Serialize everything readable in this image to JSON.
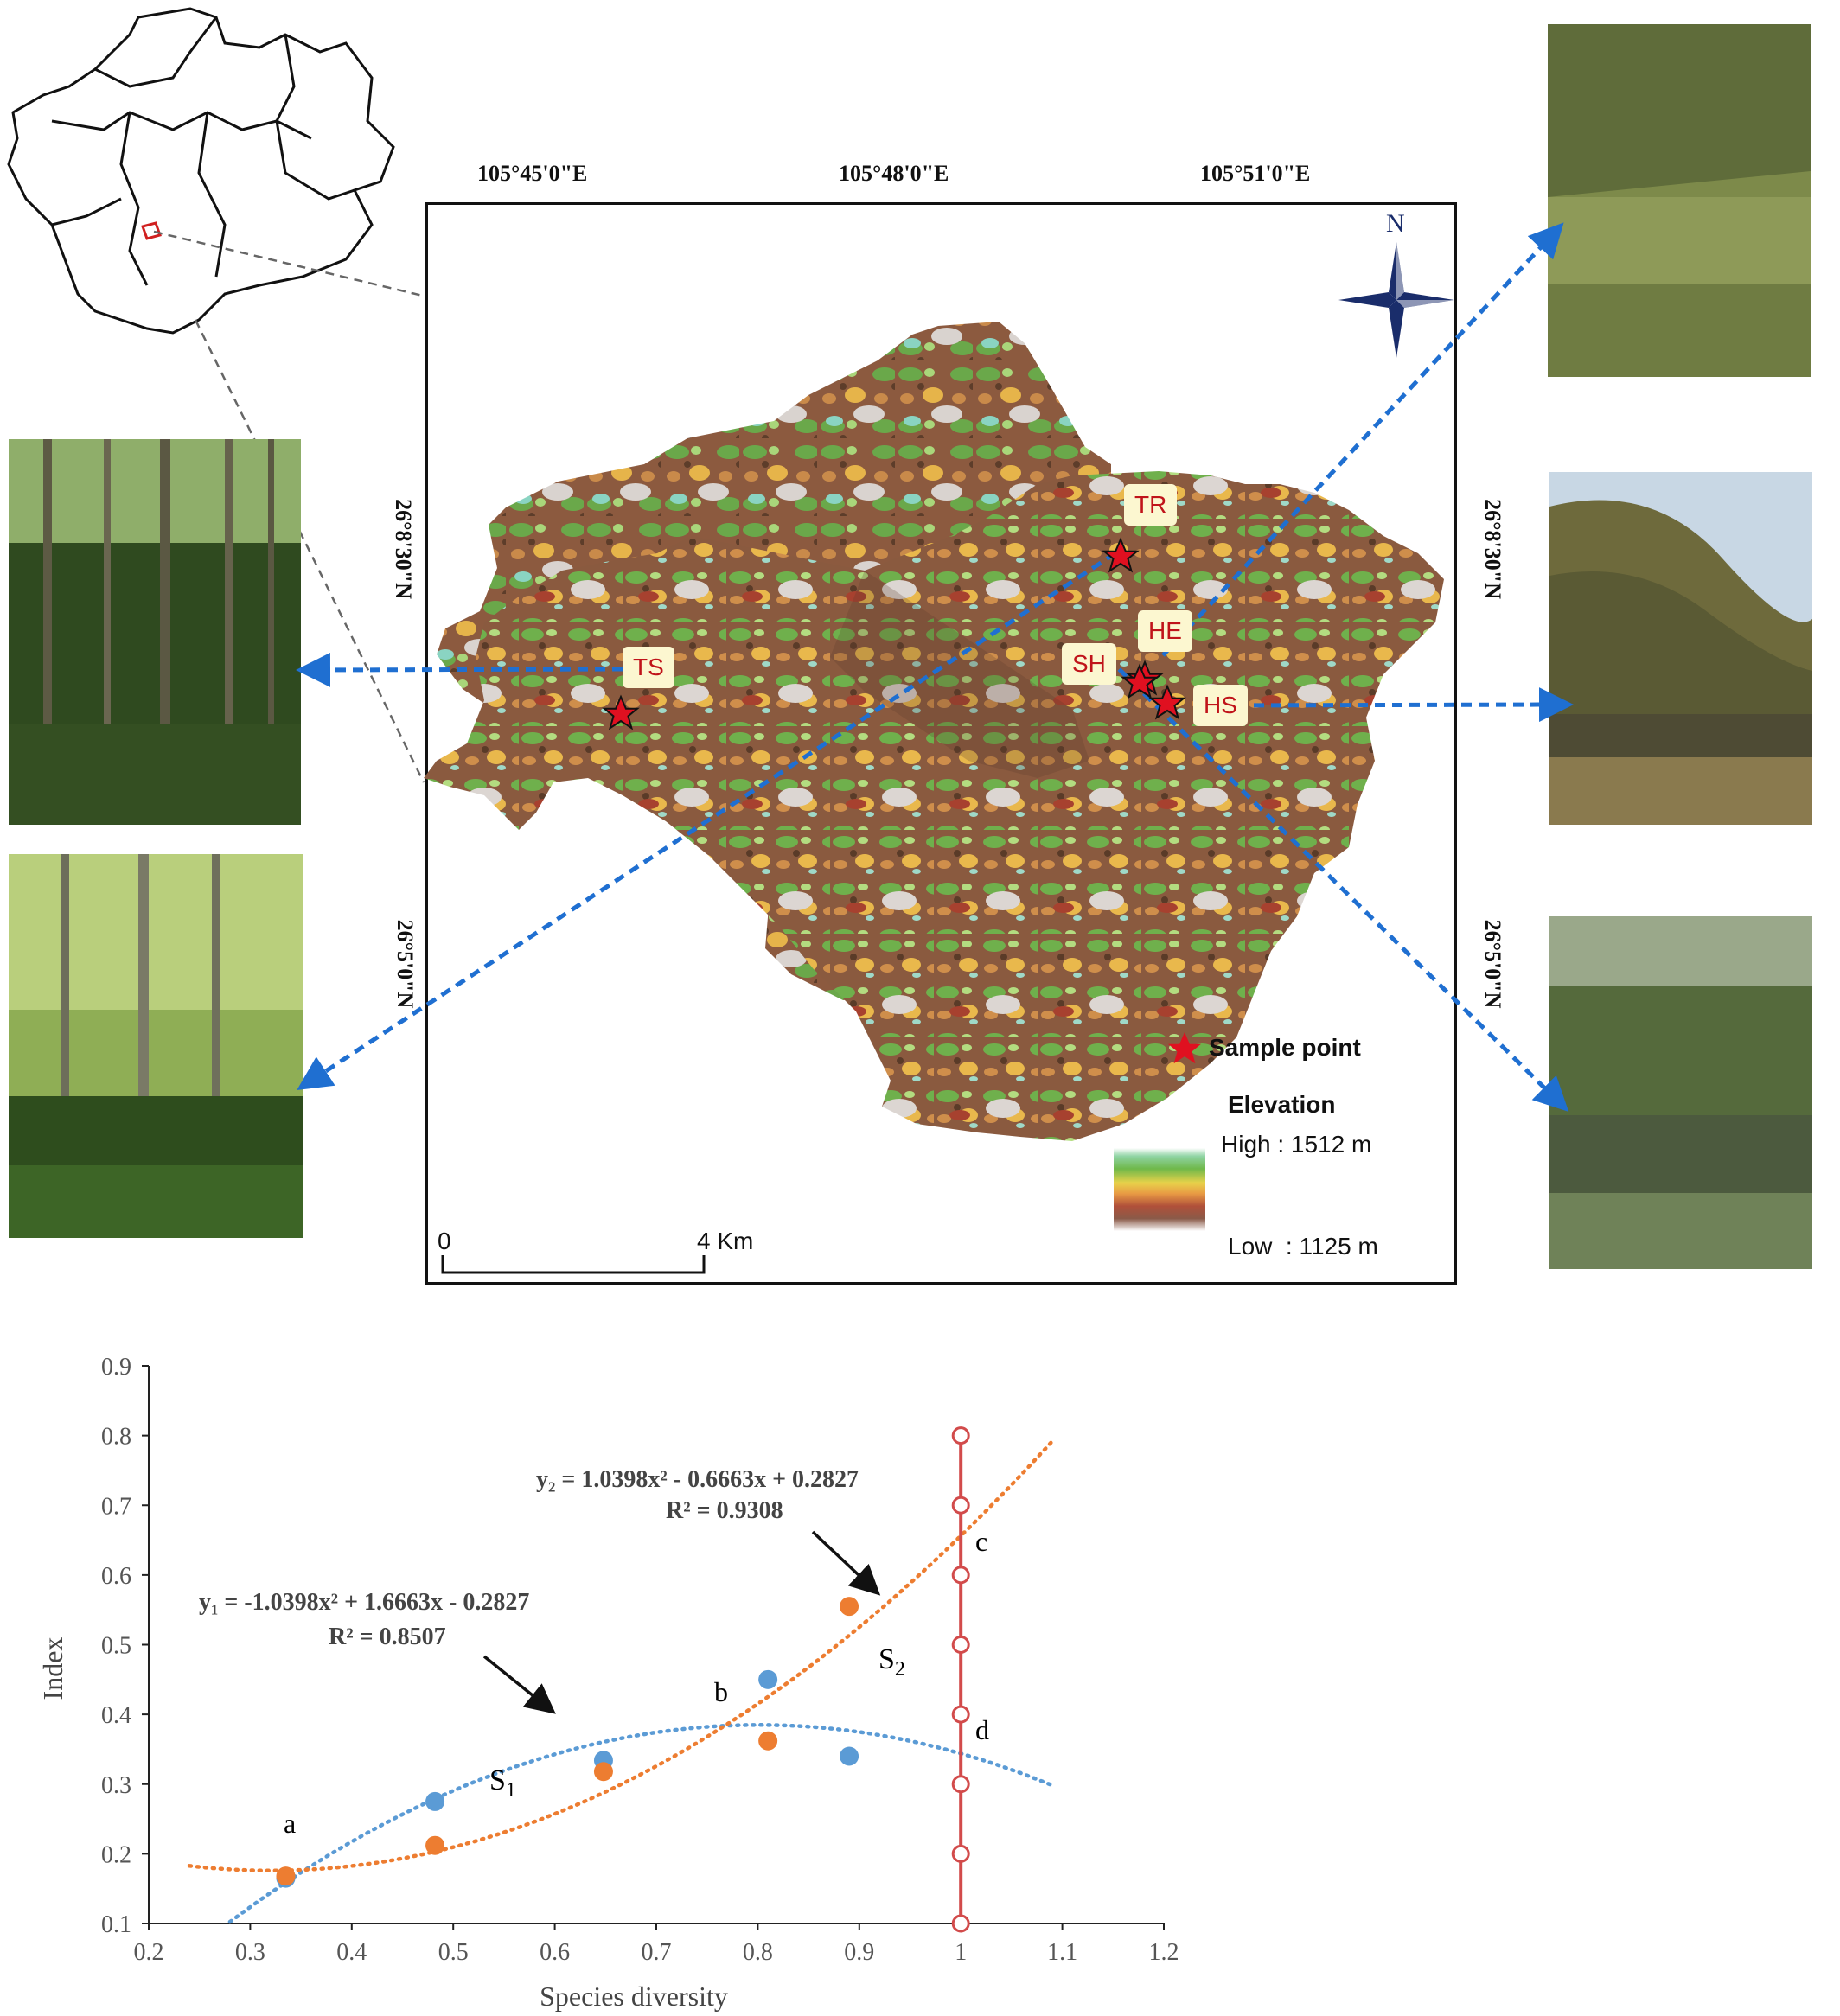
{
  "map": {
    "top_coords": [
      "105°45'0\"E",
      "105°48'0\"E",
      "105°51'0\"E"
    ],
    "left_coords": [
      "26°8'30\"N",
      "26°5'0\"N"
    ],
    "right_coords": [
      "26°8'30\"N",
      "26°5'0\"N"
    ],
    "north_label": "N",
    "sites": [
      "TR",
      "HE",
      "SH",
      "HS",
      "TS"
    ],
    "legend": {
      "sample_point": "Sample   point",
      "elevation_title": "Elevation",
      "high": "High : 1512 m",
      "low": "Low  : 1125 m"
    },
    "scale": {
      "zero": "0",
      "end": "4 Km"
    },
    "colors": {
      "star": "#e01020",
      "arrow": "#1f6fd1",
      "label_text": "#c0141a",
      "label_bg": "#fcf7d0"
    }
  },
  "chart_data": {
    "type": "scatter",
    "xlabel": "Species diversity",
    "ylabel": "Index",
    "xlim": [
      0.2,
      1.2
    ],
    "ylim": [
      0.1,
      0.9
    ],
    "x_ticks": [
      "0.2",
      "0.3",
      "0.4",
      "0.5",
      "0.6",
      "0.7",
      "0.8",
      "0.9",
      "1",
      "1.1",
      "1.2"
    ],
    "y_ticks": [
      "0.1",
      "0.2",
      "0.3",
      "0.4",
      "0.5",
      "0.6",
      "0.7",
      "0.8",
      "0.9"
    ],
    "series": [
      {
        "color": "#5b9bd5",
        "points": [
          [
            0.335,
            0.165
          ],
          [
            0.482,
            0.275
          ],
          [
            0.648,
            0.334
          ],
          [
            0.81,
            0.45
          ],
          [
            0.89,
            0.34
          ]
        ]
      },
      {
        "color": "#ed7d31",
        "points": [
          [
            0.335,
            0.168
          ],
          [
            0.482,
            0.212
          ],
          [
            0.648,
            0.318
          ],
          [
            0.81,
            0.362
          ],
          [
            0.89,
            0.555
          ]
        ]
      }
    ],
    "fits": [
      {
        "color": "#5b9bd5",
        "coef": [
          -1.0398,
          1.6663,
          -0.2827
        ],
        "x_range": [
          0.28,
          1.09
        ]
      },
      {
        "color": "#ed7d31",
        "coef": [
          1.0398,
          -0.6663,
          0.2827
        ],
        "x_range": [
          0.24,
          1.09
        ]
      }
    ],
    "vertical_line": {
      "x": 1.0,
      "color": "#d24b4b",
      "marker_y": [
        0.1,
        0.2,
        0.3,
        0.4,
        0.5,
        0.6,
        0.7,
        0.8
      ]
    },
    "annotations": {
      "eq_y2": "y₂ = 1.0398x² - 0.6663x + 0.2827",
      "r2_y2": "R² = 0.9308",
      "eq_y1": "y₁ = -1.0398x² + 1.6663x - 0.2827",
      "r2_y1": "R² = 0.8507",
      "point_a": "a",
      "point_b": "b",
      "point_c": "c",
      "point_d": "d",
      "area_s1_base": "S",
      "area_s1_sub": "1",
      "area_s2_base": "S",
      "area_s2_sub": "2"
    }
  }
}
